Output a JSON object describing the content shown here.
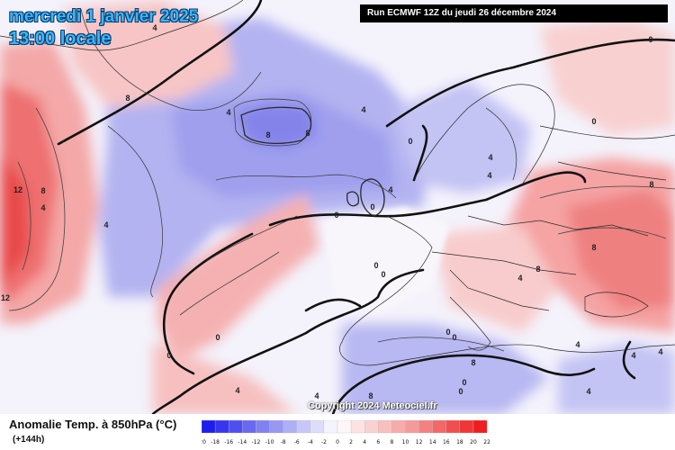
{
  "header": {
    "date_line": "mercredi 1 janvier 2025",
    "time_line": "13:00 locale",
    "run_info": "Run ECMWF 12Z du jeudi 26 décembre 2024"
  },
  "map": {
    "copyright": "Copyright 2024 Meteociel.fr",
    "contour_labels": [
      "4",
      "8",
      "12",
      "8",
      "4",
      "4",
      "4",
      "4",
      "8",
      "8",
      "8",
      "4",
      "0",
      "0",
      "0",
      "0",
      "0",
      "0",
      "0",
      "4",
      "4",
      "8",
      "0",
      "0",
      "4",
      "8",
      "8",
      "4",
      "0",
      "0",
      "4",
      "4",
      "0",
      "4",
      "8",
      "4",
      "4",
      "12",
      "0"
    ]
  },
  "legend": {
    "title": "Anomalie Temp. à 850hPa (°C)",
    "subtitle": "(+144h)",
    "scale_values": [
      "-20",
      "-18",
      "-16",
      "-14",
      "-12",
      "-10",
      "-8",
      "-6",
      "-4",
      "-2",
      "0",
      "2",
      "4",
      "6",
      "8",
      "10",
      "12",
      "14",
      "16",
      "18",
      "20",
      "22"
    ],
    "colors": {
      "strong_cold": "#1010ee",
      "cold": "#8d8df2",
      "neutral": "#ffffff",
      "warm": "#f49a9a",
      "strong_warm": "#ee1010"
    }
  }
}
